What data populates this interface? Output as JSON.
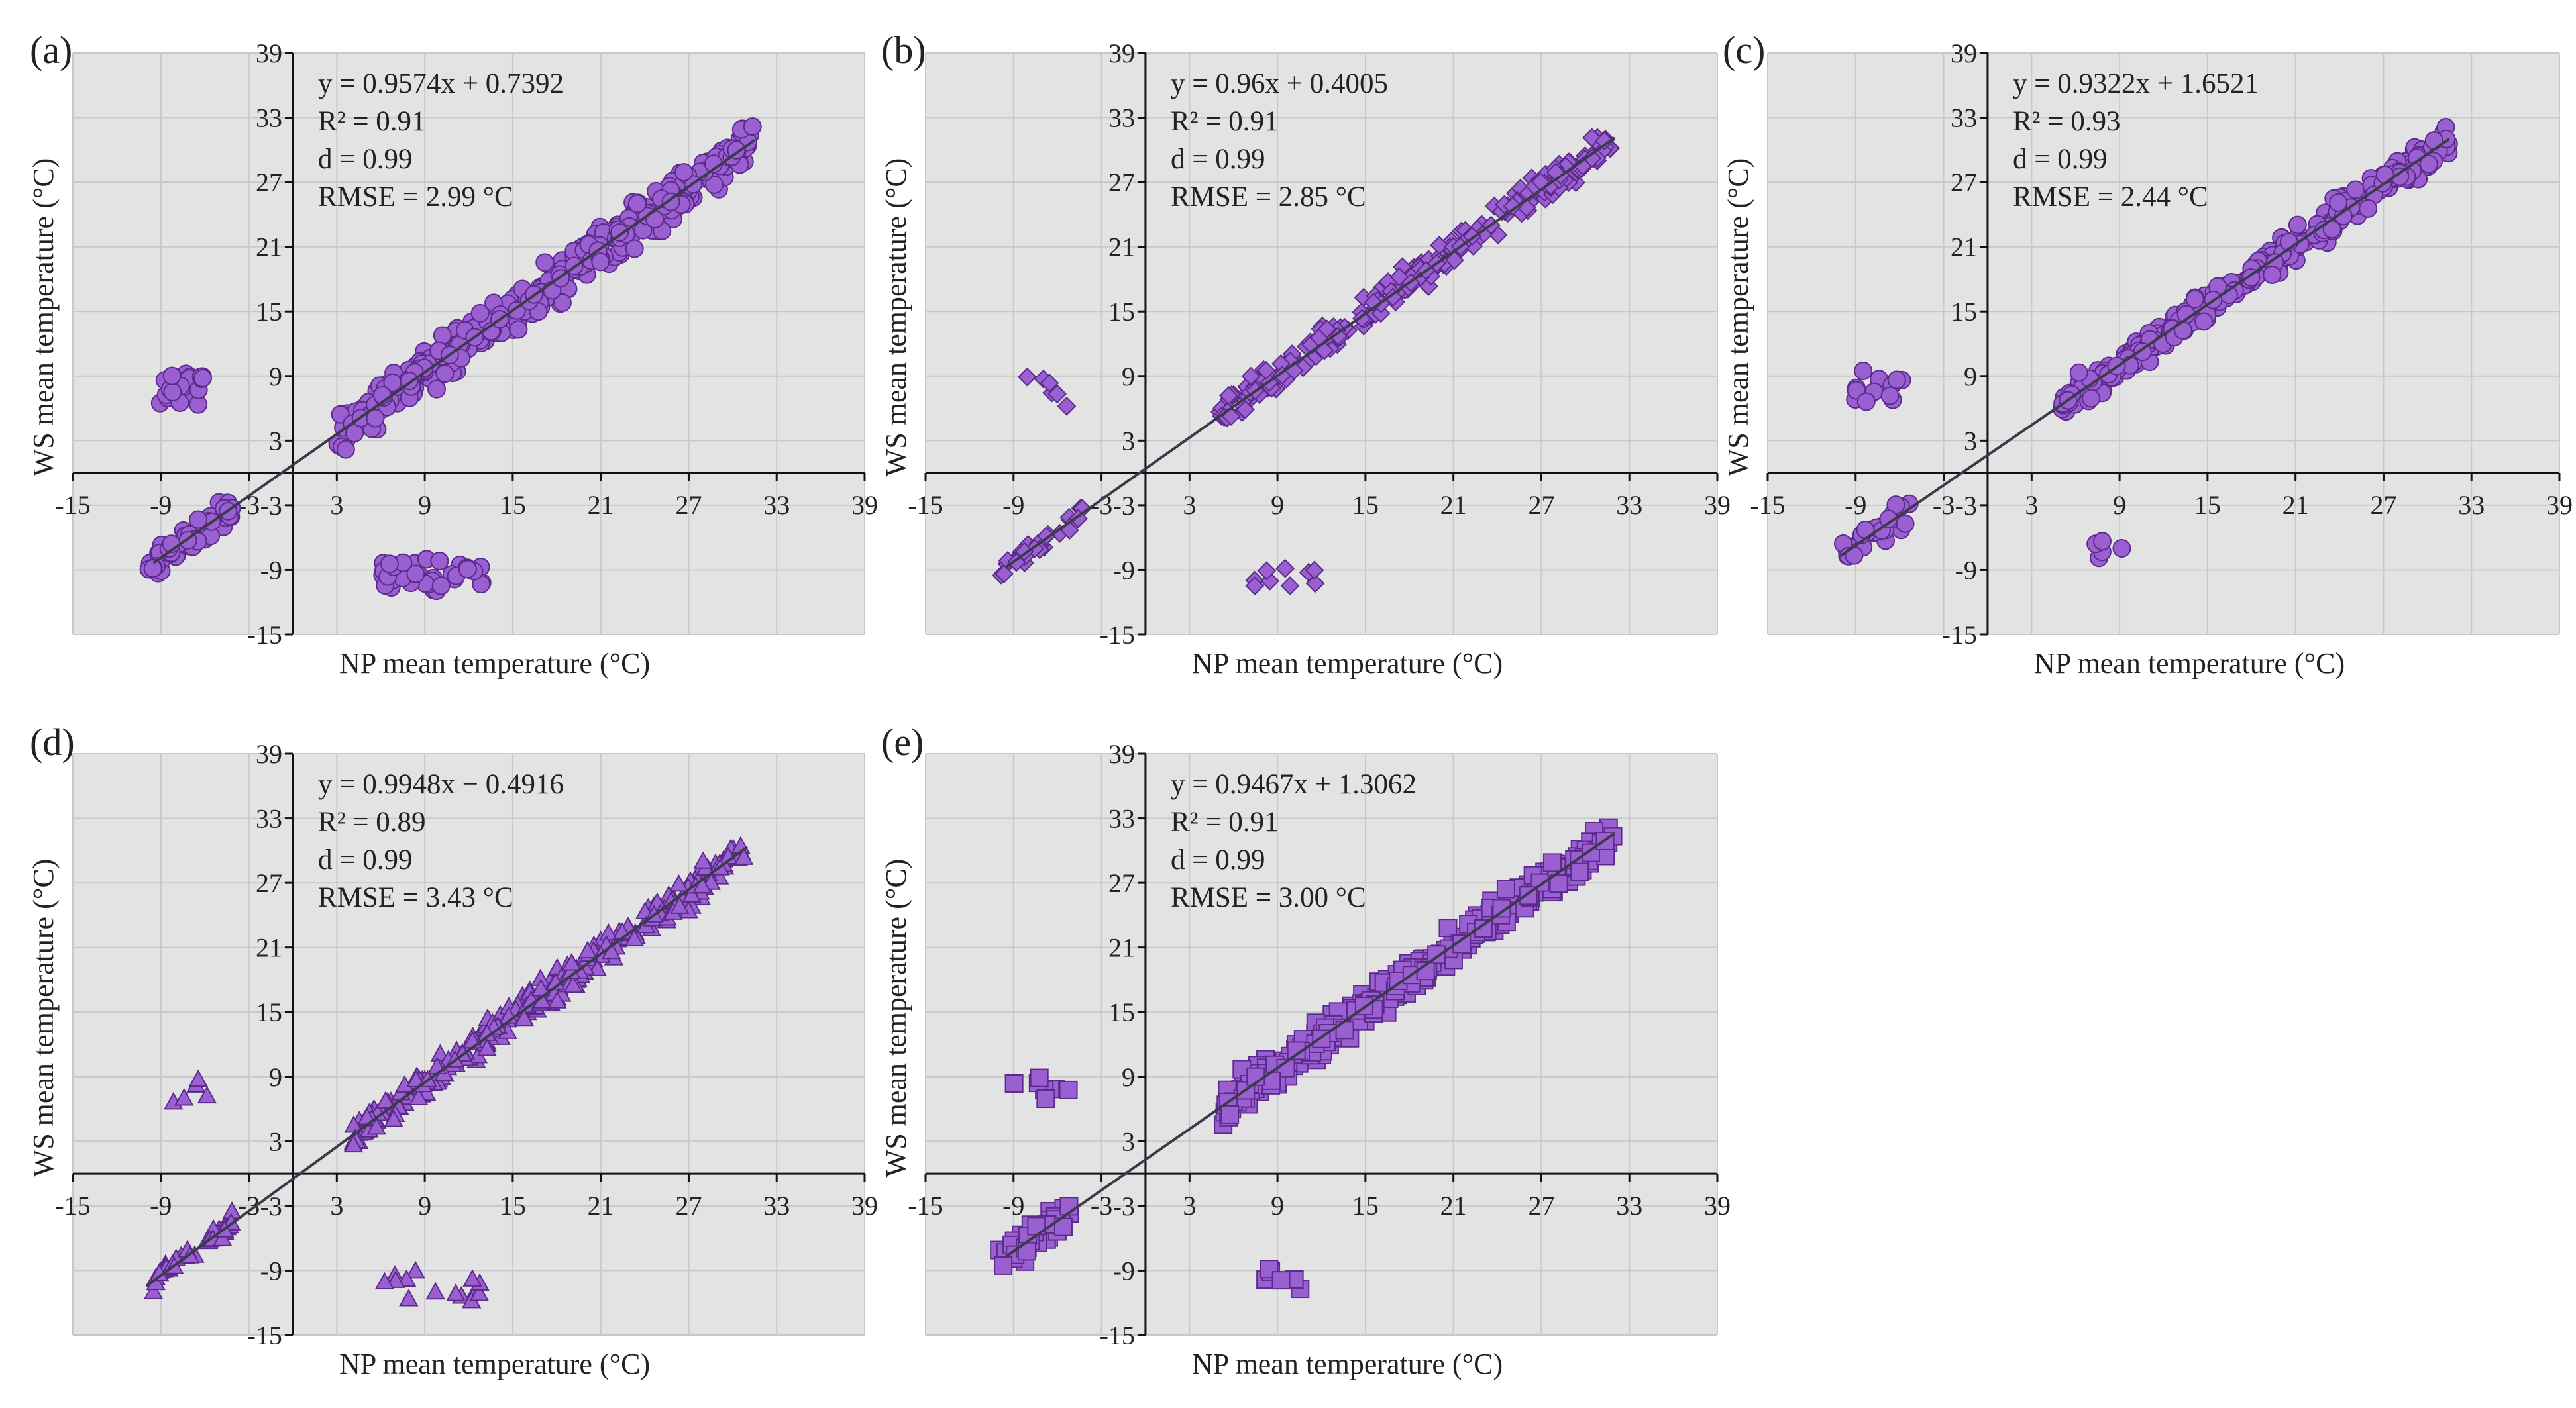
{
  "figure": {
    "x_axis_label": "NP mean temperature  (°C)",
    "y_axis_label": "WS mean temperature  (°C)",
    "marker_color": "#9a5fd0",
    "marker_edge": "#5a2a8a"
  },
  "chart_data": [
    {
      "type": "scatter",
      "panel_label": "(a)",
      "marker": "circle",
      "equation": "y = 0.9574x + 0.7392",
      "r2_label": "R² = 0.91",
      "d_label": "d = 0.99",
      "rmse_label": "RMSE = 2.99 °C",
      "xlabel": "NP mean temperature  (°C)",
      "ylabel": "WS mean temperature  (°C)",
      "xlim": [
        -15,
        39
      ],
      "ylim": [
        -15,
        39
      ],
      "ticks": [
        -15,
        -9,
        -3,
        3,
        9,
        15,
        21,
        27,
        33,
        39
      ],
      "fit": {
        "slope": 0.9574,
        "intercept": 0.7392,
        "x_range": [
          -9.5,
          31.5
        ]
      },
      "point_clusters": [
        {
          "x_range": [
            3,
            31.5
          ],
          "density": 380,
          "spread": 1.7
        },
        {
          "x_range": [
            -10,
            -4
          ],
          "density": 70,
          "spread": 1.0
        },
        {
          "center": [
            -7.5,
            7.8
          ],
          "radius": [
            1.6,
            1.6
          ],
          "density": 30
        },
        {
          "center": [
            9.5,
            -9.5
          ],
          "radius": [
            3.5,
            1.5
          ],
          "density": 40
        }
      ]
    },
    {
      "type": "scatter",
      "panel_label": "(b)",
      "marker": "diamond",
      "equation": "y = 0.96x + 0.4005",
      "r2_label": "R² = 0.91",
      "d_label": "d = 0.99",
      "rmse_label": "RMSE = 2.85 °C",
      "xlabel": "NP mean temperature  (°C)",
      "ylabel": "WS mean temperature  (°C)",
      "xlim": [
        -15,
        39
      ],
      "ylim": [
        -15,
        39
      ],
      "ticks": [
        -15,
        -9,
        -3,
        3,
        9,
        15,
        21,
        27,
        33,
        39
      ],
      "fit": {
        "slope": 0.96,
        "intercept": 0.4005,
        "x_range": [
          -9.5,
          32
        ]
      },
      "point_clusters": [
        {
          "x_range": [
            5,
            32
          ],
          "density": 260,
          "spread": 1.3
        },
        {
          "x_range": [
            -10,
            -4
          ],
          "density": 28,
          "spread": 0.8
        },
        {
          "center": [
            -7,
            7.3
          ],
          "radius": [
            1.7,
            1.8
          ],
          "density": 6
        },
        {
          "center": [
            9.5,
            -9.6
          ],
          "radius": [
            2.5,
            1.2
          ],
          "density": 9
        }
      ]
    },
    {
      "type": "scatter",
      "panel_label": "(c)",
      "marker": "circle",
      "equation": "y = 0.9322x + 1.6521",
      "r2_label": "R² = 0.93",
      "d_label": "d = 0.99",
      "rmse_label": "RMSE = 2.44 °C",
      "xlabel": "NP mean temperature  (°C)",
      "ylabel": "WS mean temperature  (°C)",
      "xlim": [
        -15,
        39
      ],
      "ylim": [
        -15,
        39
      ],
      "ticks": [
        -15,
        -9,
        -3,
        3,
        9,
        15,
        21,
        27,
        33,
        39
      ],
      "fit": {
        "slope": 0.9322,
        "intercept": 1.6521,
        "x_range": [
          -10,
          31.5
        ]
      },
      "point_clusters": [
        {
          "x_range": [
            5,
            31.5
          ],
          "density": 300,
          "spread": 1.2
        },
        {
          "x_range": [
            -10,
            -5
          ],
          "density": 35,
          "spread": 1.0
        },
        {
          "center": [
            -7.5,
            8.3
          ],
          "radius": [
            1.8,
            1.8
          ],
          "density": 12
        },
        {
          "center": [
            8,
            -7.5
          ],
          "radius": [
            1.5,
            1.8
          ],
          "density": 5
        }
      ]
    },
    {
      "type": "scatter",
      "panel_label": "(d)",
      "marker": "triangle",
      "equation": "y = 0.9948x − 0.4916",
      "r2_label": "R² = 0.89",
      "d_label": "d = 0.99",
      "rmse_label": "RMSE = 3.43 °C",
      "xlabel": "NP mean temperature  (°C)",
      "ylabel": "WS mean temperature  (°C)",
      "xlim": [
        -15,
        39
      ],
      "ylim": [
        -15,
        39
      ],
      "ticks": [
        -15,
        -9,
        -3,
        3,
        9,
        15,
        21,
        27,
        33,
        39
      ],
      "fit": {
        "slope": 0.9948,
        "intercept": -0.4916,
        "x_range": [
          -10,
          31
        ]
      },
      "point_clusters": [
        {
          "x_range": [
            4,
            31
          ],
          "density": 300,
          "spread": 1.3
        },
        {
          "x_range": [
            -10,
            -4
          ],
          "density": 40,
          "spread": 0.8
        },
        {
          "center": [
            -6.5,
            7.5
          ],
          "radius": [
            2,
            1.5
          ],
          "density": 5
        },
        {
          "center": [
            9.5,
            -10.5
          ],
          "radius": [
            3.5,
            1.5
          ],
          "density": 14
        }
      ]
    },
    {
      "type": "scatter",
      "panel_label": "(e)",
      "marker": "square",
      "equation": "y = 0.9467x + 1.3062",
      "r2_label": "R² = 0.91",
      "d_label": "d = 0.99",
      "rmse_label": "RMSE = 3.00 °C",
      "xlabel": "NP mean temperature  (°C)",
      "ylabel": "WS mean temperature  (°C)",
      "xlim": [
        -15,
        39
      ],
      "ylim": [
        -15,
        39
      ],
      "ticks": [
        -15,
        -9,
        -3,
        3,
        9,
        15,
        21,
        27,
        33,
        39
      ],
      "fit": {
        "slope": 0.9467,
        "intercept": 1.3062,
        "x_range": [
          -9.5,
          32
        ]
      },
      "point_clusters": [
        {
          "x_range": [
            5,
            32
          ],
          "density": 320,
          "spread": 1.4
        },
        {
          "x_range": [
            -10,
            -5
          ],
          "density": 50,
          "spread": 1.2
        },
        {
          "center": [
            -7,
            8
          ],
          "radius": [
            2,
            1.5
          ],
          "density": 8
        },
        {
          "center": [
            9.5,
            -9.8
          ],
          "radius": [
            2,
            1.5
          ],
          "density": 6
        }
      ]
    }
  ]
}
